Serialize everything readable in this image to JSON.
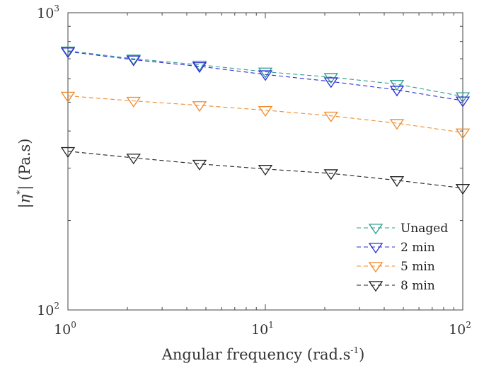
{
  "chart_data": {
    "type": "line",
    "x_scale": "log",
    "y_scale": "log",
    "xlabel": {
      "base": "Angular frequency (rad.s",
      "sup": "-1",
      "tail": ")"
    },
    "ylabel": {
      "base": "|η",
      "sup": "*",
      "tail": "|  (Pa.s)"
    },
    "xlim": [
      1,
      100
    ],
    "ylim": [
      100,
      1000
    ],
    "x_ticks": [
      {
        "base": "10",
        "exp": "0",
        "value": 1
      },
      {
        "base": "10",
        "exp": "1",
        "value": 10
      },
      {
        "base": "10",
        "exp": "2",
        "value": 100
      }
    ],
    "y_ticks": [
      {
        "base": "10",
        "exp": "2",
        "value": 100
      },
      {
        "base": "10",
        "exp": "3",
        "value": 1000
      }
    ],
    "grid": false,
    "legend_position": "bottom-right",
    "x": [
      1,
      2.15,
      4.64,
      10,
      21.5,
      46.4,
      100
    ],
    "series": [
      {
        "name": "Unaged",
        "color": "#2a9d8f",
        "marker": "triangle-down-open",
        "line": "dashed",
        "values": [
          745,
          700,
          668,
          633,
          607,
          575,
          523
        ]
      },
      {
        "name": "2 min",
        "color": "#2d2dd6",
        "marker": "triangle-down-open",
        "line": "dashed",
        "values": [
          740,
          695,
          660,
          620,
          587,
          550,
          506
        ]
      },
      {
        "name": "5 min",
        "color": "#f28a2b",
        "marker": "triangle-down-open",
        "line": "dashed",
        "values": [
          525,
          505,
          488,
          470,
          450,
          425,
          395
        ]
      },
      {
        "name": "8 min",
        "color": "#222222",
        "marker": "triangle-down-open",
        "line": "dashed",
        "values": [
          342,
          325,
          310,
          298,
          288,
          273,
          257
        ]
      }
    ]
  }
}
